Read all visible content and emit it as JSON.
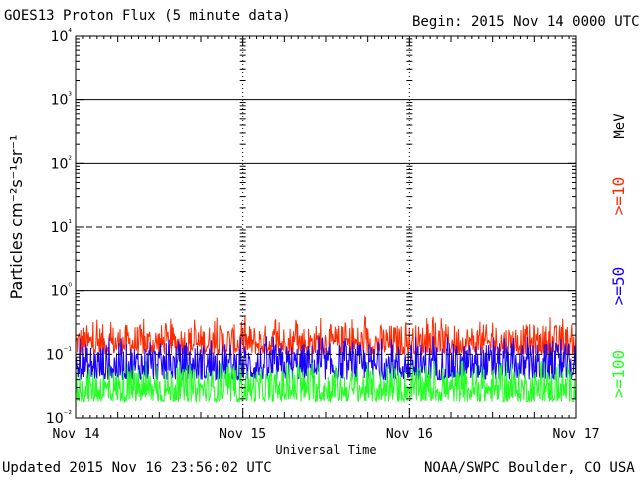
{
  "header": {
    "title": "GOES13 Proton Flux (5 minute data)",
    "begin": "Begin: 2015 Nov 14 0000 UTC"
  },
  "footer": {
    "updated": "Updated 2015 Nov 16 23:56:02 UTC",
    "credit": "NOAA/SWPC Boulder, CO USA"
  },
  "chart_data": {
    "type": "line",
    "title": "GOES13 Proton Flux (5 minute data)",
    "xlabel": "Universal Time",
    "ylabel": "Particles cm⁻²s⁻¹sr⁻¹",
    "yscale": "log",
    "ylim": [
      0.01,
      10000
    ],
    "ytick_labels": [
      {
        "value": 10000,
        "label": "10⁴"
      },
      {
        "value": 1000,
        "label": "10³"
      },
      {
        "value": 100,
        "label": "10²"
      },
      {
        "value": 10,
        "label": "10¹"
      },
      {
        "value": 1,
        "label": "10⁰"
      },
      {
        "value": 0.1,
        "label": "10⁻¹"
      },
      {
        "value": 0.01,
        "label": "10⁻²"
      }
    ],
    "x_tick_labels": [
      "Nov 14",
      "Nov 15",
      "Nov 16",
      "Nov 17"
    ],
    "xlim_days": [
      14,
      17
    ],
    "threshold_lines": [
      {
        "value": 10,
        "style": "dashed"
      },
      {
        "value": 0.1,
        "style": "dashed"
      }
    ],
    "energy_unit": "MeV",
    "series": [
      {
        "name": ">=10",
        "color": "#ff2a00",
        "typical_range": [
          0.1,
          0.3
        ]
      },
      {
        "name": ">=50",
        "color": "#1a00ff",
        "typical_range": [
          0.04,
          0.15
        ]
      },
      {
        "name": ">=100",
        "color": "#22ff22",
        "typical_range": [
          0.018,
          0.06
        ]
      }
    ]
  }
}
